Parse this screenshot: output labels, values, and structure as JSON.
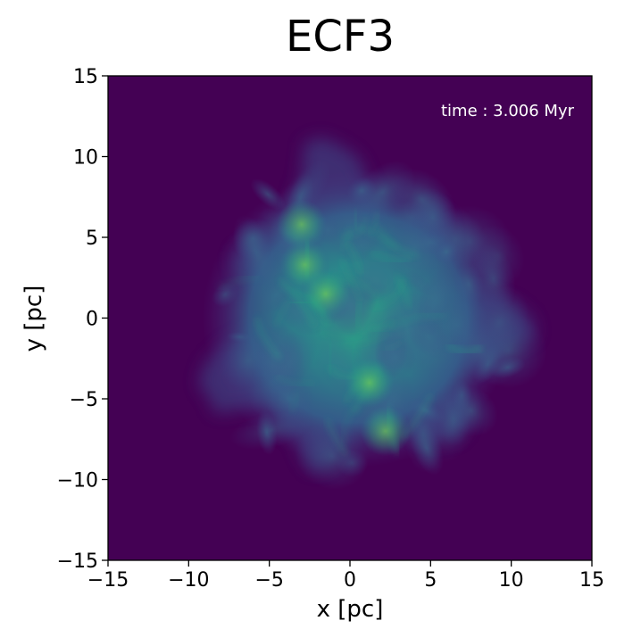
{
  "chart_data": {
    "type": "heatmap",
    "title": "ECF3",
    "xlabel": "x [pc]",
    "ylabel": "y [pc]",
    "xlim": [
      -15,
      15
    ],
    "ylim": [
      -15,
      15
    ],
    "xticks": [
      -15,
      -10,
      -5,
      0,
      5,
      10,
      15
    ],
    "yticks": [
      -15,
      -10,
      -5,
      0,
      5,
      10,
      15
    ],
    "xtick_labels": [
      "−15",
      "−10",
      "−5",
      "0",
      "5",
      "10",
      "15"
    ],
    "ytick_labels": [
      "−15",
      "−10",
      "−5",
      "0",
      "5",
      "10",
      "15"
    ],
    "annotation": "time : 3.006 Myr",
    "annotation_placement": "top-right",
    "grid": false,
    "legend": "none",
    "colormap": "viridis",
    "colors": {
      "background": "#440154",
      "cloud_low": "#3b528b",
      "cloud_mid": "#2c728e",
      "cloud_high": "#25a584",
      "cloud_peak": "#55c667"
    },
    "cloud": {
      "center": [
        0.5,
        0.0
      ],
      "approx_radius_pc": 10.5,
      "peak_locations": [
        [
          -2.8,
          3.3
        ],
        [
          -3.0,
          5.8
        ],
        [
          1.2,
          -4.0
        ],
        [
          2.2,
          -7.0
        ],
        [
          -1.5,
          1.5
        ]
      ]
    }
  }
}
